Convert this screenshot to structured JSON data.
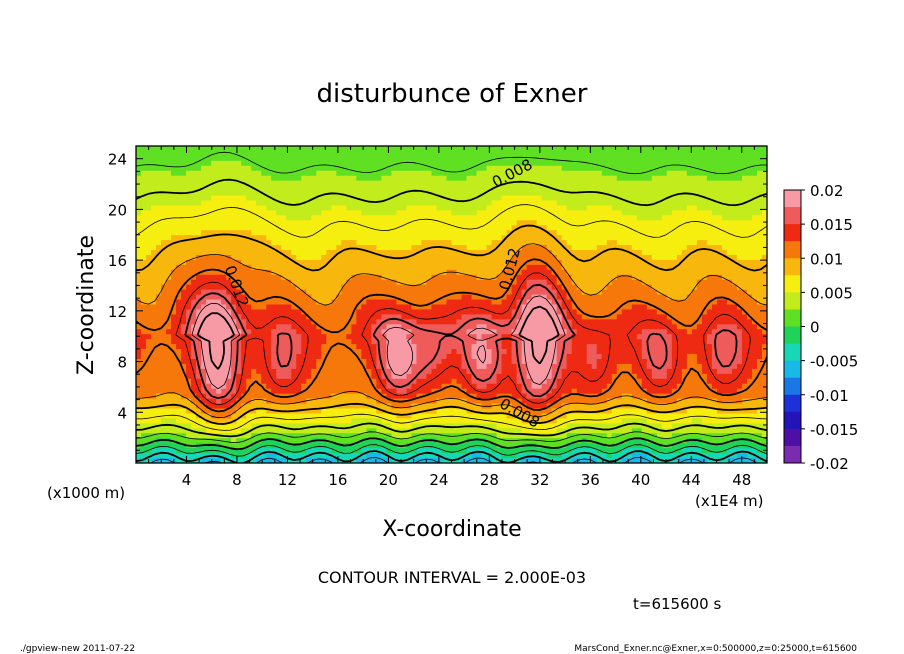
{
  "chart_data": {
    "type": "heatmap",
    "title": "disturbunce of Exner",
    "xlabel": "X-coordinate",
    "ylabel": "Z-coordinate",
    "x_unit_left": "(x1000 m)",
    "x_unit_right": "(x1E4 m)",
    "xlim": [
      0,
      50
    ],
    "ylim": [
      0,
      25
    ],
    "xticks": [
      "4",
      "8",
      "12",
      "16",
      "20",
      "24",
      "28",
      "32",
      "36",
      "40",
      "44",
      "48"
    ],
    "xtick_values": [
      4,
      8,
      12,
      16,
      20,
      24,
      28,
      32,
      36,
      40,
      44,
      48
    ],
    "yticks": [
      "4",
      "8",
      "12",
      "16",
      "20",
      "24"
    ],
    "ytick_values": [
      4,
      8,
      12,
      16,
      20,
      24
    ],
    "colorbar": {
      "labels": [
        "0.02",
        "0.015",
        "0.01",
        "0.005",
        "0",
        "-0.005",
        "-0.01",
        "-0.015",
        "-0.02"
      ],
      "colors": [
        "#f79aa5",
        "#ef5b5b",
        "#ee2a12",
        "#f6780a",
        "#f8b70d",
        "#f5ee0f",
        "#c3ec1d",
        "#5fe023",
        "#1fd25a",
        "#16d7b6",
        "#18b8e8",
        "#1a78e6",
        "#1d31d8",
        "#2214b8",
        "#4e0fa7",
        "#7a2bb0"
      ]
    },
    "contour_labels": [
      "0.008",
      "0.012",
      "0.012",
      "0.008"
    ],
    "peaks": [
      {
        "x": 6.5,
        "z": 8,
        "value": 0.0185
      },
      {
        "x": 20.8,
        "z": 8,
        "value": 0.0175
      },
      {
        "x": 27.5,
        "z": 8,
        "value": 0.0165
      },
      {
        "x": 31.8,
        "z": 8,
        "value": 0.019
      },
      {
        "x": 23.5,
        "z": 8.5,
        "value": 0.0155
      },
      {
        "x": 11.5,
        "z": 7.5,
        "value": 0.0155
      },
      {
        "x": 36.5,
        "z": 7.8,
        "value": 0.015
      },
      {
        "x": 41.5,
        "z": 8,
        "value": 0.0152
      },
      {
        "x": 46.5,
        "z": 8,
        "value": 0.0155
      }
    ]
  },
  "contour_interval": "CONTOUR INTERVAL = 2.000E-03",
  "time_label": "t=615600 s",
  "footer_left": "./gpview-new   2011-07-22",
  "footer_right": "MarsCond_Exner.nc@Exner,x=0:500000,z=0:25000,t=615600"
}
